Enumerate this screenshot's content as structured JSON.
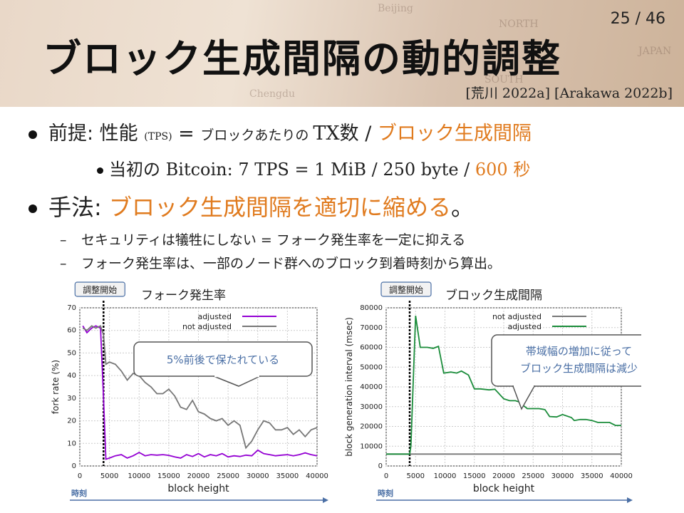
{
  "header": {
    "page_number": "25 / 46",
    "title": "ブロック生成間隔の動的調整",
    "references": "[荒川 2022a] [Arakawa 2022b]",
    "map_words": [
      "Beijing",
      "NORTH",
      "JAPAN",
      "SOUTH",
      "Chengdu"
    ]
  },
  "bullets": {
    "b1": {
      "prefix": "前提: 性能 ",
      "tps": "(TPS)",
      "eq": " = ",
      "per_block": "ブロックあたりの ",
      "tx": "TX",
      "count": "数 / ",
      "emph": "ブロック生成間隔"
    },
    "b1_sub": {
      "prefix": "当初の ",
      "formula": "Bitcoin: 7 TPS = 1 MiB / 250 byte / ",
      "emph": "600 秒"
    },
    "b2": {
      "prefix": "手法: ",
      "emph": "ブロック生成間隔を適切に縮める",
      "suffix": "。"
    },
    "b2_subs": [
      "セキュリティは犠牲にしない = フォーク発生率を一定に抑える",
      "フォーク発生率は、一部のノード群へのブロック到着時刻から算出。"
    ]
  },
  "colors": {
    "accent_orange": "#e07b1f",
    "purple": "#9400d3",
    "gray": "#777777",
    "green": "#1a8c3a"
  },
  "chart_data": [
    {
      "type": "line",
      "title": "フォーク発生率",
      "xlabel": "block height",
      "ylabel": "fork rate (%)",
      "xlim": [
        0,
        40000
      ],
      "ylim": [
        0,
        70
      ],
      "xticks": [
        0,
        5000,
        10000,
        15000,
        20000,
        25000,
        30000,
        35000,
        40000
      ],
      "yticks": [
        0,
        10,
        20,
        30,
        40,
        50,
        60,
        70
      ],
      "legend_position": "top-right",
      "grid": true,
      "adjust_start_label": "調整開始",
      "adjust_start_x": 4000,
      "time_label": "時刻",
      "callout": "5%前後で保たれている",
      "series": [
        {
          "name": "adjusted",
          "color": "#9400d3",
          "x": [
            500,
            1200,
            2000,
            2700,
            3500,
            4000,
            4400,
            5000,
            6000,
            7000,
            8000,
            9000,
            10000,
            11000,
            12000,
            13000,
            14000,
            15000,
            16000,
            17000,
            18000,
            19000,
            20000,
            21000,
            22000,
            23000,
            24000,
            25000,
            26000,
            27000,
            28000,
            29000,
            30000,
            31000,
            32000,
            33000,
            34000,
            35000,
            36000,
            37000,
            38000,
            39000,
            40000
          ],
          "y": [
            62,
            59,
            61,
            62,
            61,
            30,
            3,
            3.5,
            4.5,
            5,
            3.5,
            4.5,
            6,
            4.5,
            5,
            4.8,
            5,
            4.7,
            4,
            3.5,
            5,
            4.2,
            5.5,
            4,
            5,
            4.5,
            5.5,
            4,
            4.5,
            4.2,
            4.8,
            4.5,
            7,
            5.5,
            5,
            4.5,
            4.8,
            5,
            4.5,
            5,
            5.8,
            5,
            4.5
          ]
        },
        {
          "name": "not adjusted",
          "color": "#777777",
          "x": [
            500,
            1200,
            2000,
            2700,
            3500,
            4000,
            4400,
            5000,
            6000,
            7000,
            8000,
            9000,
            10000,
            11000,
            12000,
            13000,
            14000,
            15000,
            16000,
            17000,
            18000,
            19000,
            20000,
            21000,
            22000,
            23000,
            24000,
            25000,
            26000,
            27000,
            28000,
            29000,
            30000,
            31000,
            32000,
            33000,
            34000,
            35000,
            36000,
            37000,
            38000,
            39000,
            40000
          ],
          "y": [
            61,
            60,
            62,
            61,
            62,
            58,
            45,
            46,
            45,
            42,
            38,
            41,
            40,
            37,
            35,
            32,
            32,
            34,
            31,
            26,
            25,
            29,
            24,
            23,
            21,
            20,
            21,
            18,
            20,
            18,
            8,
            11,
            16,
            20,
            19,
            16,
            16,
            17,
            14,
            16,
            13,
            16,
            17
          ]
        }
      ]
    },
    {
      "type": "line",
      "title": "ブロック生成間隔",
      "xlabel": "block height",
      "ylabel": "block generation interval (msec)",
      "xlim": [
        0,
        40000
      ],
      "ylim": [
        0,
        80000
      ],
      "xticks": [
        0,
        5000,
        10000,
        15000,
        20000,
        25000,
        30000,
        35000,
        40000
      ],
      "yticks": [
        0,
        10000,
        20000,
        30000,
        40000,
        50000,
        60000,
        70000,
        80000
      ],
      "legend_position": "top-right",
      "grid": true,
      "adjust_start_label": "調整開始",
      "adjust_start_x": 4000,
      "time_label": "時刻",
      "callout_lines": [
        "帯域幅の増加に従って",
        "ブロック生成間隔は減少"
      ],
      "series": [
        {
          "name": "not adjusted",
          "color": "#777777",
          "x": [
            0,
            40000
          ],
          "y": [
            6000,
            6000
          ]
        },
        {
          "name": "adjusted",
          "color": "#1a8c3a",
          "x": [
            0,
            4000,
            4200,
            5000,
            5800,
            7000,
            8000,
            8900,
            9800,
            11000,
            12000,
            12800,
            14000,
            15000,
            16000,
            17500,
            18500,
            20000,
            21000,
            22000,
            22500,
            24000,
            25000,
            26000,
            27000,
            27800,
            29000,
            30000,
            31500,
            32000,
            33000,
            34000,
            35000,
            36000,
            37000,
            38000,
            39000,
            40000
          ],
          "y": [
            6000,
            6000,
            10000,
            76000,
            60000,
            60000,
            59500,
            60500,
            47000,
            47500,
            47000,
            48000,
            46000,
            39000,
            39000,
            38500,
            38800,
            34000,
            33000,
            33000,
            32500,
            29000,
            29000,
            29000,
            28500,
            25000,
            24800,
            26000,
            24500,
            23000,
            23500,
            23500,
            23000,
            22000,
            22000,
            22000,
            20500,
            20500
          ]
        }
      ]
    }
  ]
}
